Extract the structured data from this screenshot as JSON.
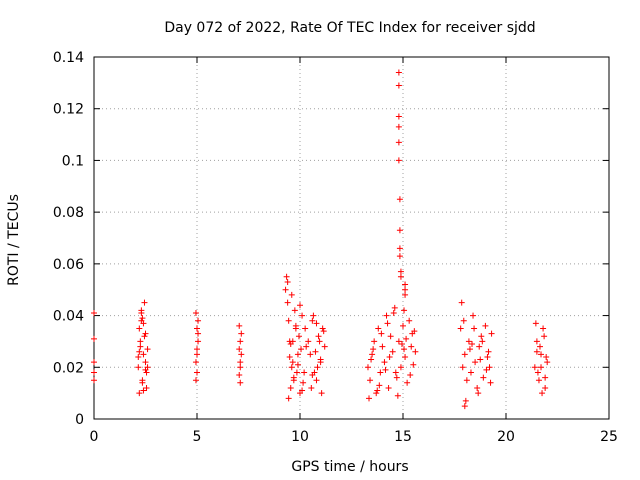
{
  "chart_data": {
    "type": "scatter",
    "title": "Day 072 of 2022, Rate Of TEC Index for receiver sjdd",
    "xlabel": "GPS time / hours",
    "ylabel": "ROTI / TECUs",
    "xlim": [
      0,
      25
    ],
    "ylim": [
      0,
      0.14
    ],
    "x_ticks": [
      0,
      5,
      10,
      15,
      20,
      25
    ],
    "y_ticks": [
      0,
      0.02,
      0.04,
      0.06,
      0.08,
      0.1,
      0.12,
      0.14
    ],
    "x_tick_labels": [
      "0",
      "5",
      "10",
      "15",
      "20",
      "25"
    ],
    "y_tick_labels": [
      "0",
      "0.02",
      "0.04",
      "0.06",
      "0.08",
      "0.1",
      "0.12",
      "0.14"
    ],
    "grid": true,
    "marker": "+",
    "color": "#ff0000",
    "series": [
      {
        "name": "sjdd",
        "x": [
          0.0,
          0.0,
          0.0,
          0.0,
          0.0,
          2.15,
          2.2,
          2.25,
          2.3,
          2.35,
          2.4,
          2.45,
          2.5,
          2.55,
          2.6,
          2.2,
          2.3,
          2.4,
          2.5,
          2.25,
          2.35,
          2.45,
          2.55,
          2.2,
          2.3,
          2.4,
          2.5,
          2.6,
          2.15,
          2.35,
          4.95,
          5.0,
          5.05,
          5.0,
          4.95,
          5.05,
          5.0,
          4.95,
          5.05,
          5.0,
          7.05,
          7.1,
          7.15,
          7.1,
          7.05,
          7.15,
          7.1,
          7.05,
          7.1,
          9.3,
          9.4,
          9.5,
          9.6,
          9.7,
          9.8,
          9.9,
          10.0,
          10.1,
          10.2,
          10.3,
          10.4,
          9.35,
          9.45,
          9.55,
          9.65,
          9.75,
          9.85,
          9.95,
          10.05,
          10.15,
          10.25,
          9.4,
          9.5,
          9.6,
          9.7,
          9.8,
          9.9,
          10.0,
          10.1,
          9.45,
          9.55,
          9.65,
          10.5,
          10.6,
          10.7,
          10.8,
          10.9,
          11.0,
          11.1,
          11.2,
          10.55,
          10.65,
          10.75,
          10.85,
          10.95,
          11.05,
          11.15,
          10.6,
          10.8,
          11.0,
          13.3,
          13.4,
          13.5,
          13.6,
          13.7,
          13.8,
          13.9,
          14.0,
          14.1,
          14.2,
          14.3,
          14.4,
          14.5,
          14.6,
          14.7,
          14.8,
          14.9,
          15.0,
          15.1,
          15.2,
          15.3,
          15.4,
          15.5,
          15.6,
          13.35,
          13.55,
          13.75,
          13.95,
          14.15,
          14.35,
          14.55,
          14.75,
          14.95,
          15.15,
          15.35,
          15.55,
          13.45,
          13.85,
          14.25,
          14.65,
          15.05,
          15.45,
          14.8,
          14.8,
          14.8,
          14.8,
          14.8,
          14.8,
          14.85,
          14.85,
          14.85,
          14.85,
          14.9,
          14.9,
          15.1,
          15.1,
          15.1,
          15.05,
          17.8,
          17.9,
          18.0,
          18.1,
          18.2,
          18.3,
          18.4,
          18.5,
          18.6,
          18.7,
          18.8,
          18.9,
          19.0,
          19.1,
          19.2,
          19.3,
          17.85,
          18.05,
          18.25,
          18.45,
          18.65,
          18.85,
          19.05,
          19.25,
          17.95,
          18.35,
          18.75,
          19.15,
          18.0,
          21.4,
          21.5,
          21.6,
          21.7,
          21.8,
          21.9,
          22.0,
          21.45,
          21.55,
          21.65,
          21.75,
          21.85,
          21.95,
          21.5,
          21.7,
          21.9
        ],
        "y": [
          0.041,
          0.031,
          0.022,
          0.018,
          0.015,
          0.02,
          0.035,
          0.028,
          0.041,
          0.015,
          0.025,
          0.032,
          0.019,
          0.012,
          0.027,
          0.01,
          0.042,
          0.037,
          0.022,
          0.03,
          0.014,
          0.045,
          0.018,
          0.026,
          0.038,
          0.011,
          0.033,
          0.02,
          0.024,
          0.039,
          0.041,
          0.035,
          0.03,
          0.027,
          0.022,
          0.033,
          0.018,
          0.015,
          0.038,
          0.025,
          0.036,
          0.03,
          0.025,
          0.02,
          0.017,
          0.033,
          0.014,
          0.027,
          0.022,
          0.05,
          0.045,
          0.03,
          0.02,
          0.015,
          0.035,
          0.025,
          0.01,
          0.04,
          0.018,
          0.028,
          0.03,
          0.055,
          0.038,
          0.012,
          0.022,
          0.042,
          0.018,
          0.032,
          0.027,
          0.014,
          0.035,
          0.053,
          0.024,
          0.048,
          0.016,
          0.036,
          0.021,
          0.044,
          0.011,
          0.008,
          0.029,
          0.03,
          0.025,
          0.038,
          0.018,
          0.015,
          0.032,
          0.022,
          0.035,
          0.028,
          0.012,
          0.04,
          0.026,
          0.02,
          0.03,
          0.01,
          0.034,
          0.017,
          0.037,
          0.023,
          0.02,
          0.015,
          0.025,
          0.03,
          0.01,
          0.035,
          0.018,
          0.028,
          0.022,
          0.04,
          0.012,
          0.032,
          0.026,
          0.043,
          0.016,
          0.03,
          0.02,
          0.036,
          0.024,
          0.014,
          0.038,
          0.028,
          0.021,
          0.026,
          0.008,
          0.027,
          0.011,
          0.033,
          0.019,
          0.024,
          0.041,
          0.009,
          0.029,
          0.031,
          0.017,
          0.034,
          0.023,
          0.013,
          0.037,
          0.018,
          0.027,
          0.033,
          0.134,
          0.129,
          0.117,
          0.113,
          0.107,
          0.1,
          0.085,
          0.073,
          0.066,
          0.063,
          0.057,
          0.055,
          0.052,
          0.05,
          0.048,
          0.042,
          0.035,
          0.02,
          0.025,
          0.015,
          0.03,
          0.018,
          0.04,
          0.022,
          0.012,
          0.028,
          0.032,
          0.016,
          0.036,
          0.024,
          0.02,
          0.033,
          0.045,
          0.007,
          0.027,
          0.035,
          0.01,
          0.03,
          0.019,
          0.014,
          0.038,
          0.029,
          0.023,
          0.026,
          0.005,
          0.02,
          0.03,
          0.015,
          0.025,
          0.035,
          0.012,
          0.022,
          0.037,
          0.018,
          0.028,
          0.01,
          0.032,
          0.024,
          0.026,
          0.02,
          0.016
        ]
      }
    ]
  }
}
